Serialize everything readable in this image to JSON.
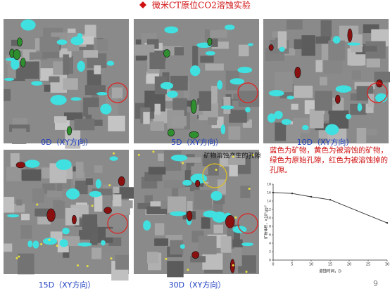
{
  "header": {
    "title": "微米CT原位CO2溶蚀实验"
  },
  "panels": [
    {
      "label": "0D（XY方向）"
    },
    {
      "label": "5D（XY方向）"
    },
    {
      "label": "10D（XY方向）"
    },
    {
      "label": "15D（XY方向）"
    },
    {
      "label": "30D（XY方向）"
    }
  ],
  "annotation": "矿物溶蚀产生的孔隙",
  "description": "蓝色为矿物，黄色为被溶蚀的矿物，绿色为原始孔隙，红色为被溶蚀掉的孔隙。",
  "chart": {
    "type": "line",
    "x": [
      0,
      5,
      10,
      15,
      30
    ],
    "values": [
      16,
      15.8,
      15,
      14.3,
      8.8
    ],
    "color": "#333333",
    "xlim": [
      0,
      30
    ],
    "xticks": [
      0,
      5,
      10,
      15,
      20,
      25,
      30
    ],
    "ylim": [
      0,
      18
    ],
    "yticks": [
      0,
      2,
      4,
      6,
      8,
      10,
      12,
      14,
      16,
      18
    ],
    "x_label": "溶蚀时间，D",
    "y_label": "矿物体积，×10⁵μm³"
  },
  "page_number": "9"
}
